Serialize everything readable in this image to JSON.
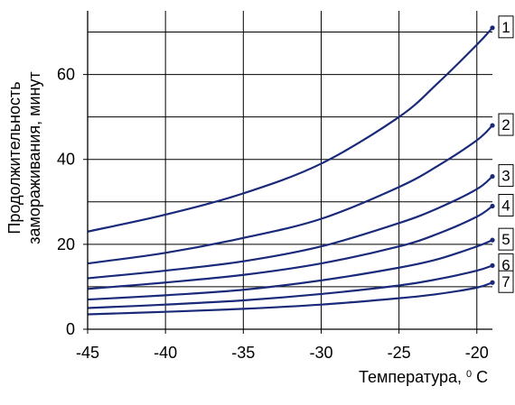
{
  "chart_data": {
    "type": "line",
    "xlabel": "Температура, ",
    "xlabel_sup": "0",
    "xlabel_unit": " С",
    "ylabel_line1": "Продолжительность",
    "ylabel_line2": "замораживания, минут",
    "xlim": [
      -45,
      -19
    ],
    "ylim": [
      0,
      75
    ],
    "x_ticks": [
      -45,
      -40,
      -35,
      -30,
      -25,
      -20
    ],
    "y_ticks": [
      0,
      20,
      40,
      60
    ],
    "grid": true,
    "colors": {
      "series": "#1a2a7a",
      "grid": "#000000",
      "label_box": "#000000"
    },
    "x": [
      -45,
      -40,
      -35,
      -30,
      -25,
      -22.5,
      -20,
      -19
    ],
    "series": [
      {
        "name": "1",
        "values": [
          23,
          27,
          32,
          39,
          50,
          58,
          67,
          71
        ]
      },
      {
        "name": "2",
        "values": [
          15.5,
          18,
          21.5,
          26,
          33.5,
          38.5,
          44.5,
          48
        ]
      },
      {
        "name": "3",
        "values": [
          12,
          13.8,
          16,
          19.5,
          25,
          28.5,
          33,
          36
        ]
      },
      {
        "name": "4",
        "values": [
          9.5,
          11,
          12.8,
          15.5,
          19.5,
          22.5,
          26.5,
          29
        ]
      },
      {
        "name": "5",
        "values": [
          7,
          8,
          9.3,
          11.5,
          14.5,
          16.5,
          19.5,
          21
        ]
      },
      {
        "name": "6",
        "values": [
          5,
          5.8,
          6.8,
          8.3,
          10.3,
          11.8,
          13.8,
          15
        ]
      },
      {
        "name": "7",
        "values": [
          3.5,
          4.1,
          4.8,
          5.8,
          7.3,
          8.3,
          9.8,
          11
        ]
      }
    ]
  }
}
